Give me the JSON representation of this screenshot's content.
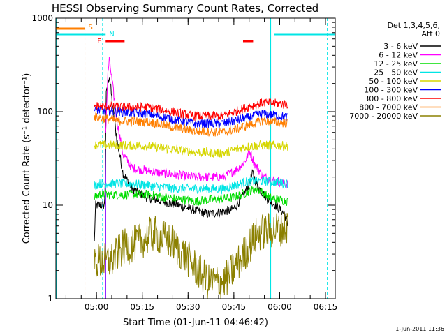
{
  "chart_data": {
    "type": "line",
    "title": "HESSI Observing Summary Count Rates, Corrected",
    "xlabel": "Start Time (01-Jun-11 04:46:42)",
    "ylabel": "Corrected Count Rate (s⁻¹ detector⁻¹)",
    "y_scale": "log",
    "ylim": [
      1,
      1000
    ],
    "xlim_minutes": [
      0,
      91.5
    ],
    "x_ticks": [
      {
        "label": "05:00",
        "min": 13.3
      },
      {
        "label": "05:15",
        "min": 28.3
      },
      {
        "label": "05:30",
        "min": 43.3
      },
      {
        "label": "05:45",
        "min": 58.3
      },
      {
        "label": "06:00",
        "min": 73.3
      },
      {
        "label": "06:15",
        "min": 88.3
      }
    ],
    "y_ticks": [
      {
        "label": "1",
        "value": 1
      },
      {
        "label": "10",
        "value": 10
      },
      {
        "label": "100",
        "value": 100
      },
      {
        "label": "1000",
        "value": 1000
      }
    ],
    "legend_header": [
      "Det 1,3,4,5,6,",
      "Att 0"
    ],
    "flags": {
      "S": {
        "label": "S",
        "color": "#ff7f00",
        "segments": [
          [
            0,
            9.5
          ]
        ],
        "vline_min": 9.5
      },
      "N": {
        "label": "N",
        "color": "#00e5e5",
        "segments": [
          [
            0,
            16.3
          ],
          [
            71.5,
            91.5
          ]
        ],
        "vlines_min": [
          15.3,
          88.9
        ]
      },
      "F": {
        "label": "F",
        "color": "#ff0000",
        "segments": [
          [
            16.3,
            22.5
          ],
          [
            61.3,
            64.6
          ]
        ]
      }
    },
    "orbit_vlines_min": [
      0,
      70.3
    ],
    "purple_vline_min": 16.3,
    "series": [
      {
        "name": "3 - 6 keV",
        "color": "#000000",
        "points": [
          [
            12.6,
            4
          ],
          [
            13.0,
            10
          ],
          [
            16.0,
            10
          ],
          [
            16.5,
            150
          ],
          [
            17.5,
            250
          ],
          [
            18.5,
            120
          ],
          [
            20,
            50
          ],
          [
            22,
            22
          ],
          [
            25,
            15
          ],
          [
            30,
            12
          ],
          [
            40,
            10
          ],
          [
            50,
            8
          ],
          [
            58,
            9
          ],
          [
            61,
            12
          ],
          [
            63,
            16
          ],
          [
            64.5,
            22
          ],
          [
            66,
            16
          ],
          [
            70,
            11
          ],
          [
            72,
            10
          ],
          [
            75,
            8
          ],
          [
            76,
            6
          ]
        ]
      },
      {
        "name": "6 - 12 keV",
        "color": "#ff00ff",
        "points": [
          [
            16.3,
            60
          ],
          [
            17,
            240
          ],
          [
            17.5,
            360
          ],
          [
            18.5,
            200
          ],
          [
            20,
            80
          ],
          [
            22,
            35
          ],
          [
            25,
            25
          ],
          [
            35,
            22
          ],
          [
            45,
            20
          ],
          [
            55,
            20
          ],
          [
            60,
            25
          ],
          [
            62,
            30
          ],
          [
            63.5,
            38
          ],
          [
            65,
            28
          ],
          [
            68,
            20
          ],
          [
            75,
            17
          ],
          [
            76,
            17
          ]
        ]
      },
      {
        "name": "12 - 25 keV",
        "color": "#00dd00",
        "points": [
          [
            12.6,
            12
          ],
          [
            14,
            13
          ],
          [
            20,
            13
          ],
          [
            30,
            13
          ],
          [
            45,
            11
          ],
          [
            58,
            12
          ],
          [
            63,
            14
          ],
          [
            66,
            15
          ],
          [
            70,
            12
          ],
          [
            76,
            11
          ]
        ]
      },
      {
        "name": "25 - 50 keV",
        "color": "#00e5e5",
        "points": [
          [
            12.6,
            16
          ],
          [
            14,
            17
          ],
          [
            25,
            17
          ],
          [
            40,
            15
          ],
          [
            55,
            15
          ],
          [
            63,
            18
          ],
          [
            70,
            18
          ],
          [
            76,
            17
          ]
        ]
      },
      {
        "name": "50 - 100 keV",
        "color": "#d6d600",
        "points": [
          [
            12.6,
            44
          ],
          [
            20,
            44
          ],
          [
            30,
            43
          ],
          [
            45,
            37
          ],
          [
            55,
            36
          ],
          [
            62,
            42
          ],
          [
            68,
            44
          ],
          [
            76,
            43
          ]
        ]
      },
      {
        "name": "100 - 300 keV",
        "color": "#0000ff",
        "points": [
          [
            12.6,
            105
          ],
          [
            20,
            100
          ],
          [
            30,
            95
          ],
          [
            45,
            75
          ],
          [
            55,
            75
          ],
          [
            62,
            85
          ],
          [
            68,
            95
          ],
          [
            76,
            87
          ]
        ]
      },
      {
        "name": "300 - 800 keV",
        "color": "#ff0000",
        "points": [
          [
            12.6,
            115
          ],
          [
            20,
            112
          ],
          [
            30,
            112
          ],
          [
            45,
            90
          ],
          [
            55,
            90
          ],
          [
            62,
            110
          ],
          [
            68,
            125
          ],
          [
            76,
            120
          ]
        ]
      },
      {
        "name": "800 - 7000 keV",
        "color": "#ff7f00",
        "points": [
          [
            12.6,
            88
          ],
          [
            20,
            80
          ],
          [
            30,
            78
          ],
          [
            45,
            62
          ],
          [
            55,
            60
          ],
          [
            62,
            70
          ],
          [
            68,
            80
          ],
          [
            76,
            75
          ]
        ]
      },
      {
        "name": "7000 - 20000 keV",
        "color": "#8b8000",
        "points": [
          [
            12.6,
            2.5
          ],
          [
            18,
            2.5
          ],
          [
            22,
            3.5
          ],
          [
            27,
            4
          ],
          [
            32,
            5
          ],
          [
            38,
            4
          ],
          [
            44,
            2.5
          ],
          [
            50,
            1.5
          ],
          [
            55,
            1.5
          ],
          [
            60,
            2.5
          ],
          [
            63,
            3.5
          ],
          [
            66,
            5
          ],
          [
            72,
            5.5
          ],
          [
            76,
            6
          ]
        ]
      }
    ]
  },
  "footer_timestamp": "1-Jun-2011 11:36"
}
